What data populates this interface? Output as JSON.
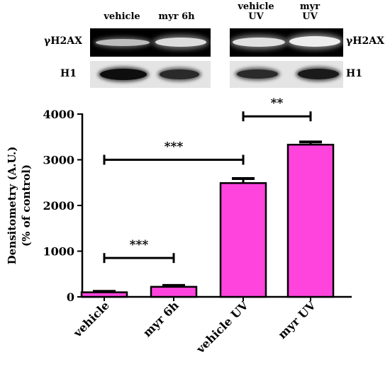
{
  "blots": {
    "left_headers": [
      "vehicle",
      "myr 6h"
    ],
    "right_headers": [
      [
        "vehicle",
        "UV"
      ],
      [
        "myr",
        "UV"
      ]
    ],
    "row_labels": {
      "gamma_h2ax_left": "γH2AX",
      "gamma_h2ax_right": "γH2AX",
      "h1_left": "H1",
      "h1_right": "H1"
    }
  },
  "chart_data": {
    "type": "bar",
    "categories": [
      "vehicle",
      "myr 6h",
      "vehicle UV",
      "myr UV"
    ],
    "values": [
      100,
      220,
      2490,
      3330
    ],
    "errors": [
      20,
      30,
      100,
      60
    ],
    "ylabel_line1": "Densitometry (A.U.)",
    "ylabel_line2": "(% of control)",
    "ylim": [
      0,
      4000
    ],
    "yticks": [
      "0",
      "1000",
      "2000",
      "3000",
      "4000"
    ],
    "ytick_values": [
      0,
      1000,
      2000,
      3000,
      4000
    ],
    "bar_color": "#ff44dd",
    "comparisons": [
      {
        "from": 0,
        "to": 1,
        "y": 850,
        "label": "***"
      },
      {
        "from": 0,
        "to": 2,
        "y": 3000,
        "label": "***"
      },
      {
        "from": 2,
        "to": 3,
        "y": 3950,
        "label": "**"
      }
    ]
  }
}
